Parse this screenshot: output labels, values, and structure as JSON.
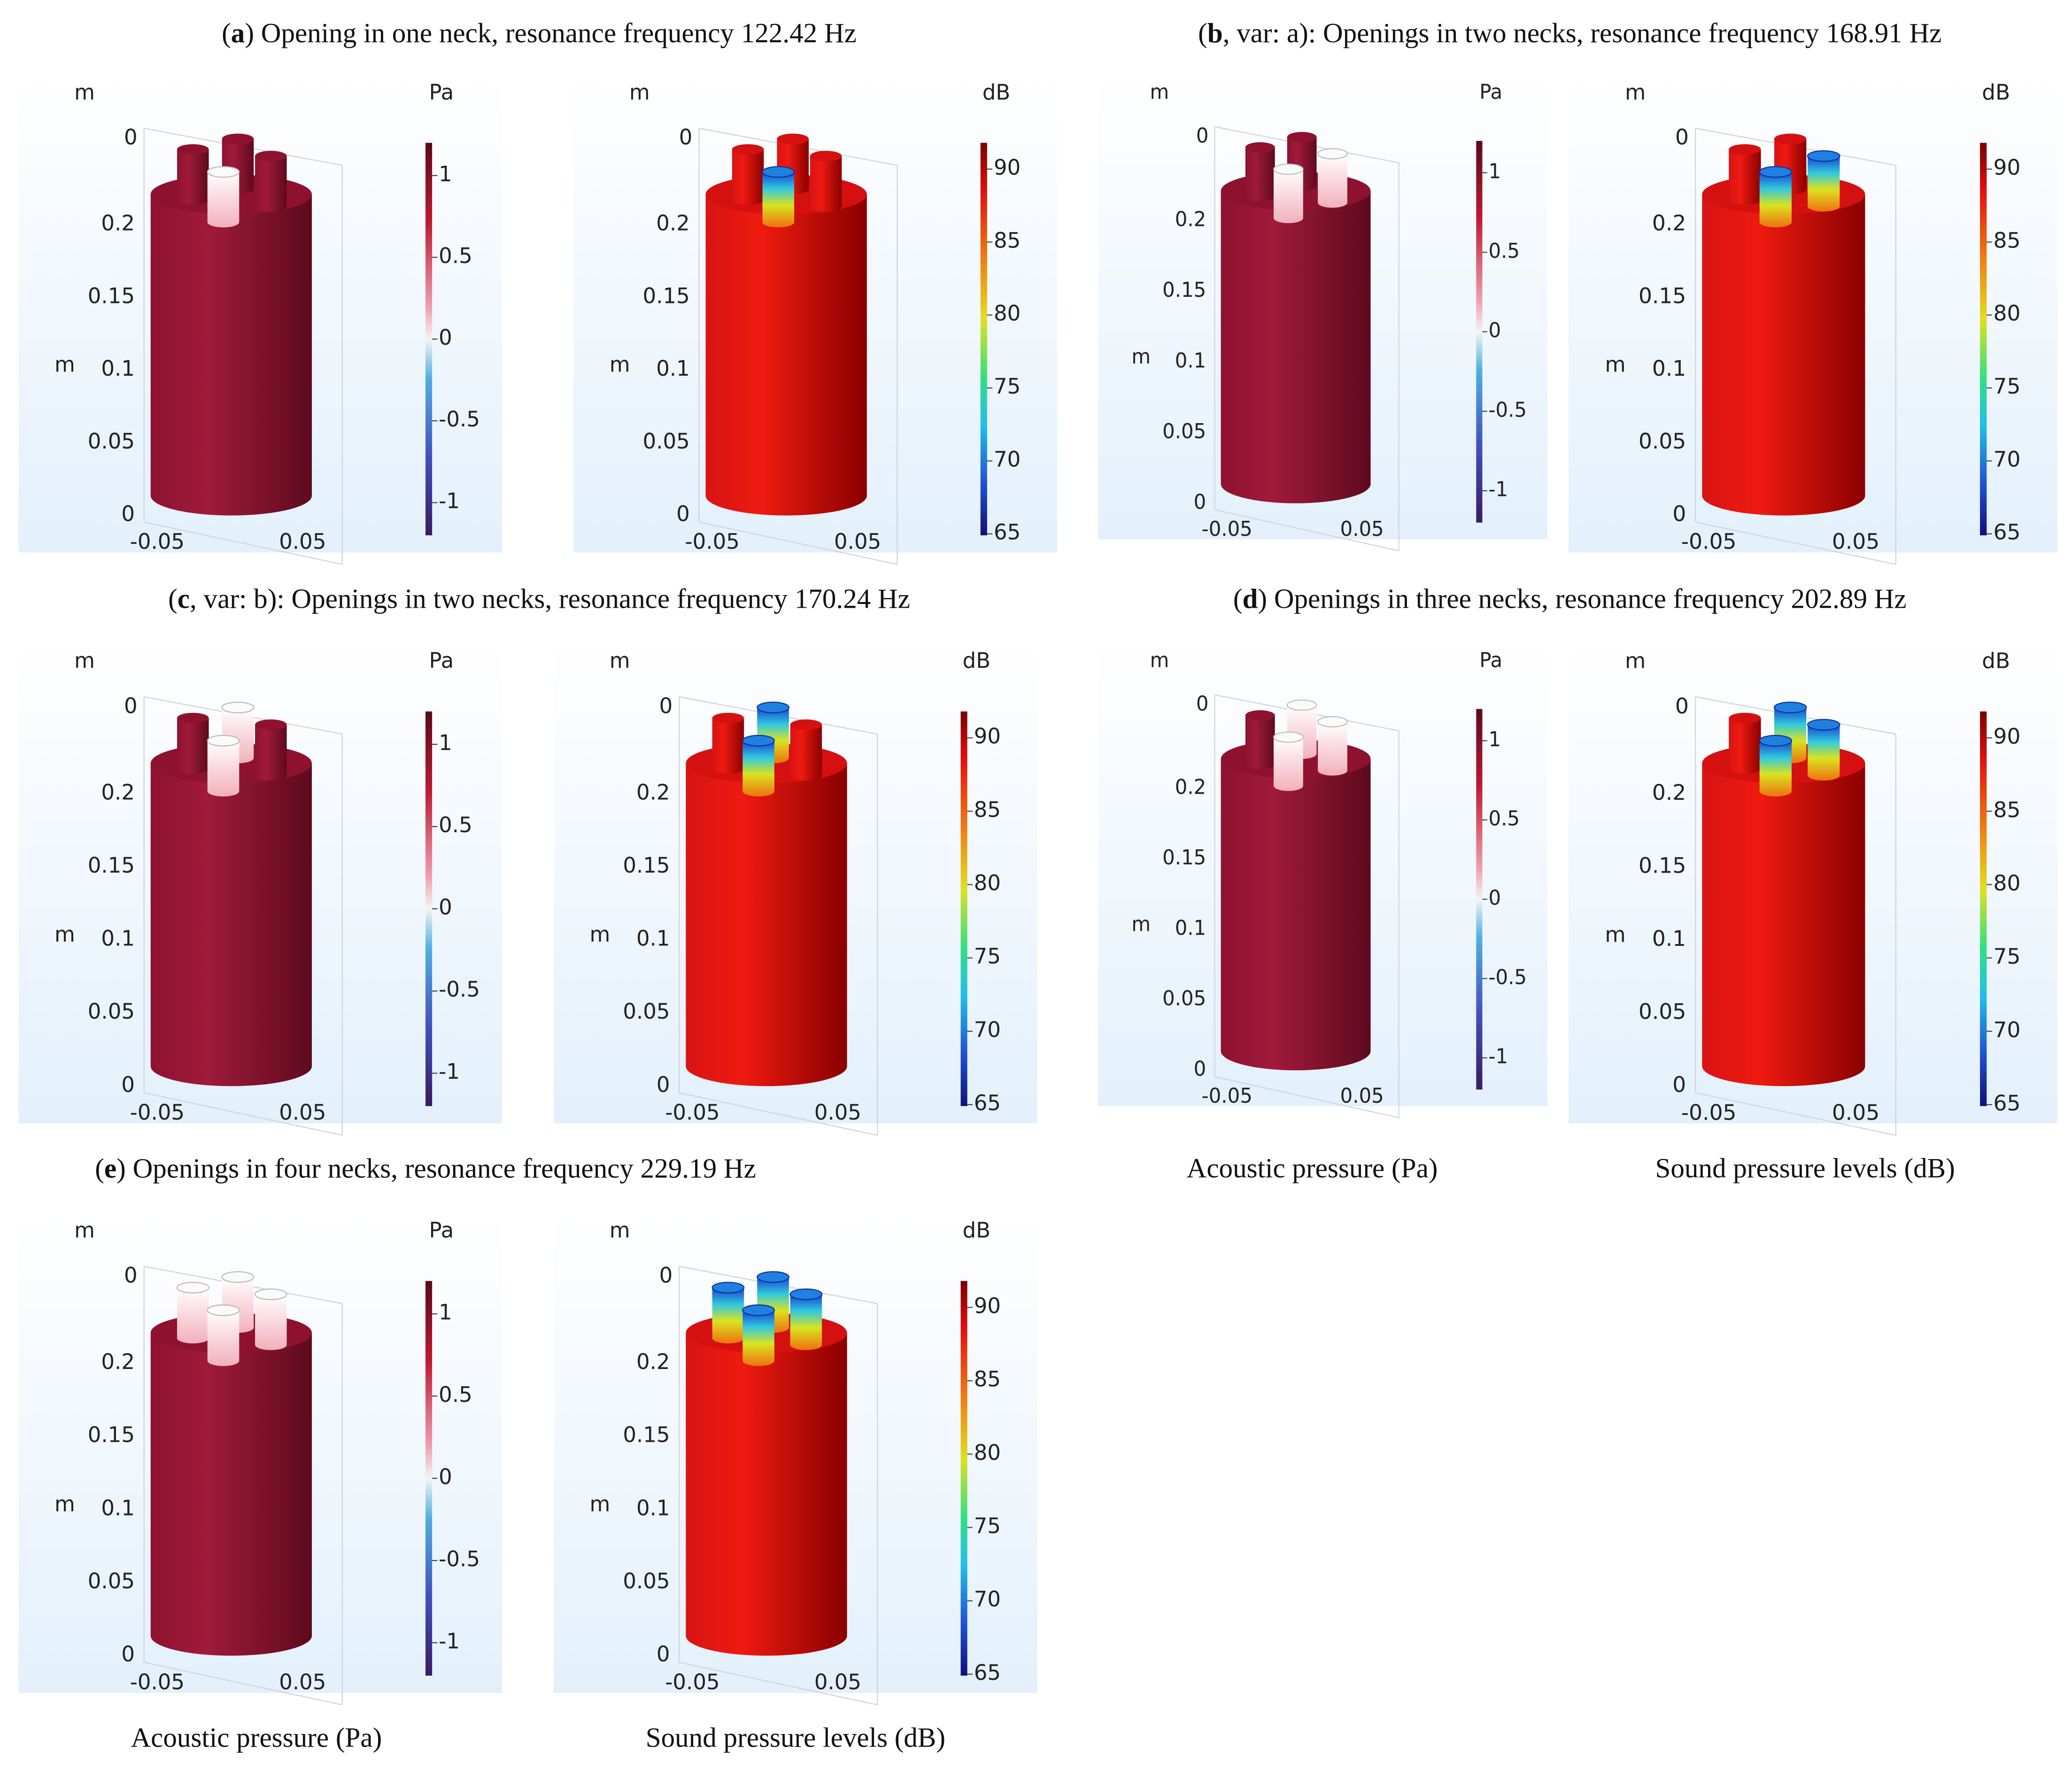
{
  "panels": [
    {
      "open": "(",
      "letter": "a",
      "caption": ") Opening in one neck, resonance frequency 122.42 Hz",
      "plots": [
        {
          "length_unit": "m",
          "value_unit": "Pa",
          "axis_label": "m",
          "y_tick": 0,
          "z_ticks": [
            0.2,
            0.15,
            0.1,
            0.05,
            0
          ],
          "x_ticks": [
            -0.05,
            0.05
          ],
          "colorbar": {
            "range": [
              -1.2,
              1.2
            ],
            "ticks": [
              1,
              0.5,
              0,
              -0.5,
              -1
            ]
          }
        },
        {
          "length_unit": "m",
          "value_unit": "dB",
          "axis_label": "m",
          "y_tick": 0,
          "z_ticks": [
            0.2,
            0.15,
            0.1,
            0.05,
            0
          ],
          "x_ticks": [
            -0.05,
            0.05
          ],
          "colorbar": {
            "range": [
              64.9,
              91.8
            ],
            "ticks": [
              90,
              85,
              80,
              75,
              70,
              65
            ]
          }
        }
      ]
    },
    {
      "open": "(",
      "letter": "b",
      "caption": ", var: a): Openings in two necks, resonance frequency 168.91 Hz",
      "plots": [
        {
          "length_unit": "m",
          "value_unit": "Pa",
          "axis_label": "m",
          "y_tick": 0,
          "z_ticks": [
            0.2,
            0.15,
            0.1,
            0.05,
            0
          ],
          "x_ticks": [
            -0.05,
            0.05
          ],
          "colorbar": {
            "range": [
              -1.2,
              1.2
            ],
            "ticks": [
              1,
              0.5,
              0,
              -0.5,
              -1
            ]
          }
        },
        {
          "length_unit": "m",
          "value_unit": "dB",
          "axis_label": "m",
          "y_tick": 0,
          "z_ticks": [
            0.2,
            0.15,
            0.1,
            0.05,
            0
          ],
          "x_ticks": [
            -0.05,
            0.05
          ],
          "colorbar": {
            "range": [
              64.9,
              91.8
            ],
            "ticks": [
              90,
              85,
              80,
              75,
              70,
              65
            ]
          }
        }
      ]
    },
    {
      "open": "(",
      "letter": "c",
      "caption": ", var: b): Openings in two necks, resonance frequency 170.24 Hz",
      "plots": [
        {
          "length_unit": "m",
          "value_unit": "Pa",
          "axis_label": "m",
          "y_tick": 0,
          "z_ticks": [
            0.2,
            0.15,
            0.1,
            0.05,
            0
          ],
          "x_ticks": [
            -0.05,
            0.05
          ],
          "colorbar": {
            "range": [
              -1.2,
              1.2
            ],
            "ticks": [
              1,
              0.5,
              0,
              -0.5,
              -1
            ]
          }
        },
        {
          "length_unit": "m",
          "value_unit": "dB",
          "axis_label": "m",
          "y_tick": 0,
          "z_ticks": [
            0.2,
            0.15,
            0.1,
            0.05,
            0
          ],
          "x_ticks": [
            -0.05,
            0.05
          ],
          "colorbar": {
            "range": [
              64.9,
              91.8
            ],
            "ticks": [
              90,
              85,
              80,
              75,
              70,
              65
            ]
          }
        }
      ]
    },
    {
      "open": "(",
      "letter": "d",
      "caption": ") Openings in three necks, resonance frequency 202.89 Hz",
      "plots": [
        {
          "length_unit": "m",
          "value_unit": "Pa",
          "axis_label": "m",
          "y_tick": 0,
          "z_ticks": [
            0.2,
            0.15,
            0.1,
            0.05,
            0
          ],
          "x_ticks": [
            -0.05,
            0.05
          ],
          "colorbar": {
            "range": [
              -1.2,
              1.2
            ],
            "ticks": [
              1,
              0.5,
              0,
              -0.5,
              -1
            ]
          }
        },
        {
          "length_unit": "m",
          "value_unit": "dB",
          "axis_label": "m",
          "y_tick": 0,
          "z_ticks": [
            0.2,
            0.15,
            0.1,
            0.05,
            0
          ],
          "x_ticks": [
            -0.05,
            0.05
          ],
          "colorbar": {
            "range": [
              64.9,
              91.8
            ],
            "ticks": [
              90,
              85,
              80,
              75,
              70,
              65
            ]
          }
        }
      ]
    },
    {
      "open": "(",
      "letter": "e",
      "caption": ") Openings in four necks, resonance frequency 229.19 Hz",
      "plots": [
        {
          "length_unit": "m",
          "value_unit": "Pa",
          "axis_label": "m",
          "y_tick": 0,
          "z_ticks": [
            0.2,
            0.15,
            0.1,
            0.05,
            0
          ],
          "x_ticks": [
            -0.05,
            0.05
          ],
          "colorbar": {
            "range": [
              -1.2,
              1.2
            ],
            "ticks": [
              1,
              0.5,
              0,
              -0.5,
              -1
            ]
          }
        },
        {
          "length_unit": "m",
          "value_unit": "dB",
          "axis_label": "m",
          "y_tick": 0,
          "z_ticks": [
            0.2,
            0.15,
            0.1,
            0.05,
            0
          ],
          "x_ticks": [
            -0.05,
            0.05
          ],
          "colorbar": {
            "range": [
              64.9,
              91.8
            ],
            "ticks": [
              90,
              85,
              80,
              75,
              70,
              65
            ]
          }
        }
      ]
    }
  ],
  "labels_right": [
    "Acoustic pressure (Pa)",
    "Sound pressure levels (dB)"
  ],
  "labels_bottom": [
    "Acoustic pressure (Pa)",
    "Sound pressure levels (dB)"
  ]
}
